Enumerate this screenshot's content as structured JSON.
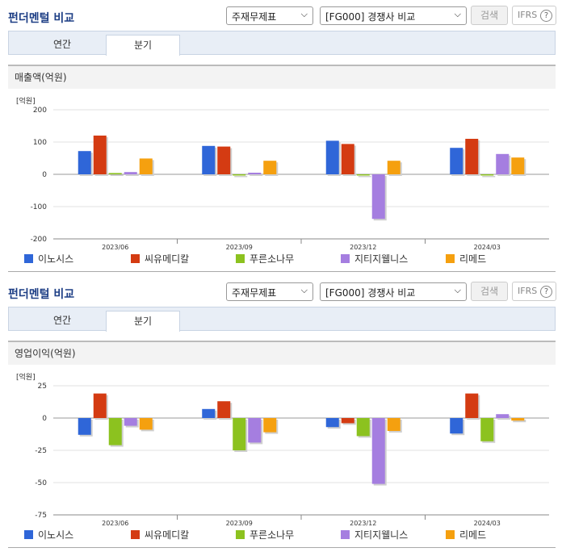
{
  "series_names": [
    "이노시스",
    "씨유메디칼",
    "푸른소나무",
    "지티지웰니스",
    "리메드"
  ],
  "colors": {
    "이노시스": "#2f66d8",
    "씨유메디칼": "#d43b12",
    "푸른소나무": "#8cc21f",
    "지티지웰니스": "#a57ee0",
    "리메드": "#f5a00f"
  },
  "panels": [
    {
      "header_title": "펀더멘털 비교",
      "select_statement": "주재무제표",
      "select_compare": "[FG000] 경쟁사 비교",
      "search_label": "검색",
      "ifrs_label": "IFRS",
      "help_glyph": "?",
      "tabs": [
        "연간",
        "분기"
      ],
      "active_tab": "분기",
      "metric_title": "매출액(억원)",
      "unit_label": "[억원]",
      "chart_data": {
        "type": "bar",
        "categories": [
          "2023/06",
          "2023/09",
          "2023/12",
          "2024/03"
        ],
        "ylim": [
          -200,
          200
        ],
        "yticks": [
          200,
          100,
          0,
          -100,
          -200
        ],
        "series": [
          {
            "name": "이노시스",
            "values": [
              72,
              88,
              104,
              82
            ]
          },
          {
            "name": "씨유메디칼",
            "values": [
              120,
              86,
              94,
              110
            ]
          },
          {
            "name": "푸른소나무",
            "values": [
              4,
              -3,
              -2,
              -3
            ]
          },
          {
            "name": "지티지웰니스",
            "values": [
              7,
              5,
              -138,
              63
            ]
          },
          {
            "name": "리메드",
            "values": [
              49,
              42,
              42,
              52
            ]
          }
        ]
      }
    },
    {
      "header_title": "펀더멘털 비교",
      "select_statement": "주재무제표",
      "select_compare": "[FG000] 경쟁사 비교",
      "search_label": "검색",
      "ifrs_label": "IFRS",
      "help_glyph": "?",
      "tabs": [
        "연간",
        "분기"
      ],
      "active_tab": "분기",
      "metric_title": "영업이익(억원)",
      "unit_label": "[억원]",
      "chart_data": {
        "type": "bar",
        "categories": [
          "2023/06",
          "2023/09",
          "2023/12",
          "2024/03"
        ],
        "ylim": [
          -75,
          25
        ],
        "yticks": [
          25,
          0,
          -25,
          -50,
          -75
        ],
        "series": [
          {
            "name": "이노시스",
            "values": [
              -13,
              7,
              -7,
              -12
            ]
          },
          {
            "name": "씨유메디칼",
            "values": [
              19,
              13,
              -4,
              19
            ]
          },
          {
            "name": "푸른소나무",
            "values": [
              -21,
              -25,
              -14,
              -18
            ]
          },
          {
            "name": "지티지웰니스",
            "values": [
              -6,
              -19,
              -51,
              3
            ]
          },
          {
            "name": "리메드",
            "values": [
              -9,
              -11,
              -10,
              -2
            ]
          }
        ]
      }
    }
  ]
}
